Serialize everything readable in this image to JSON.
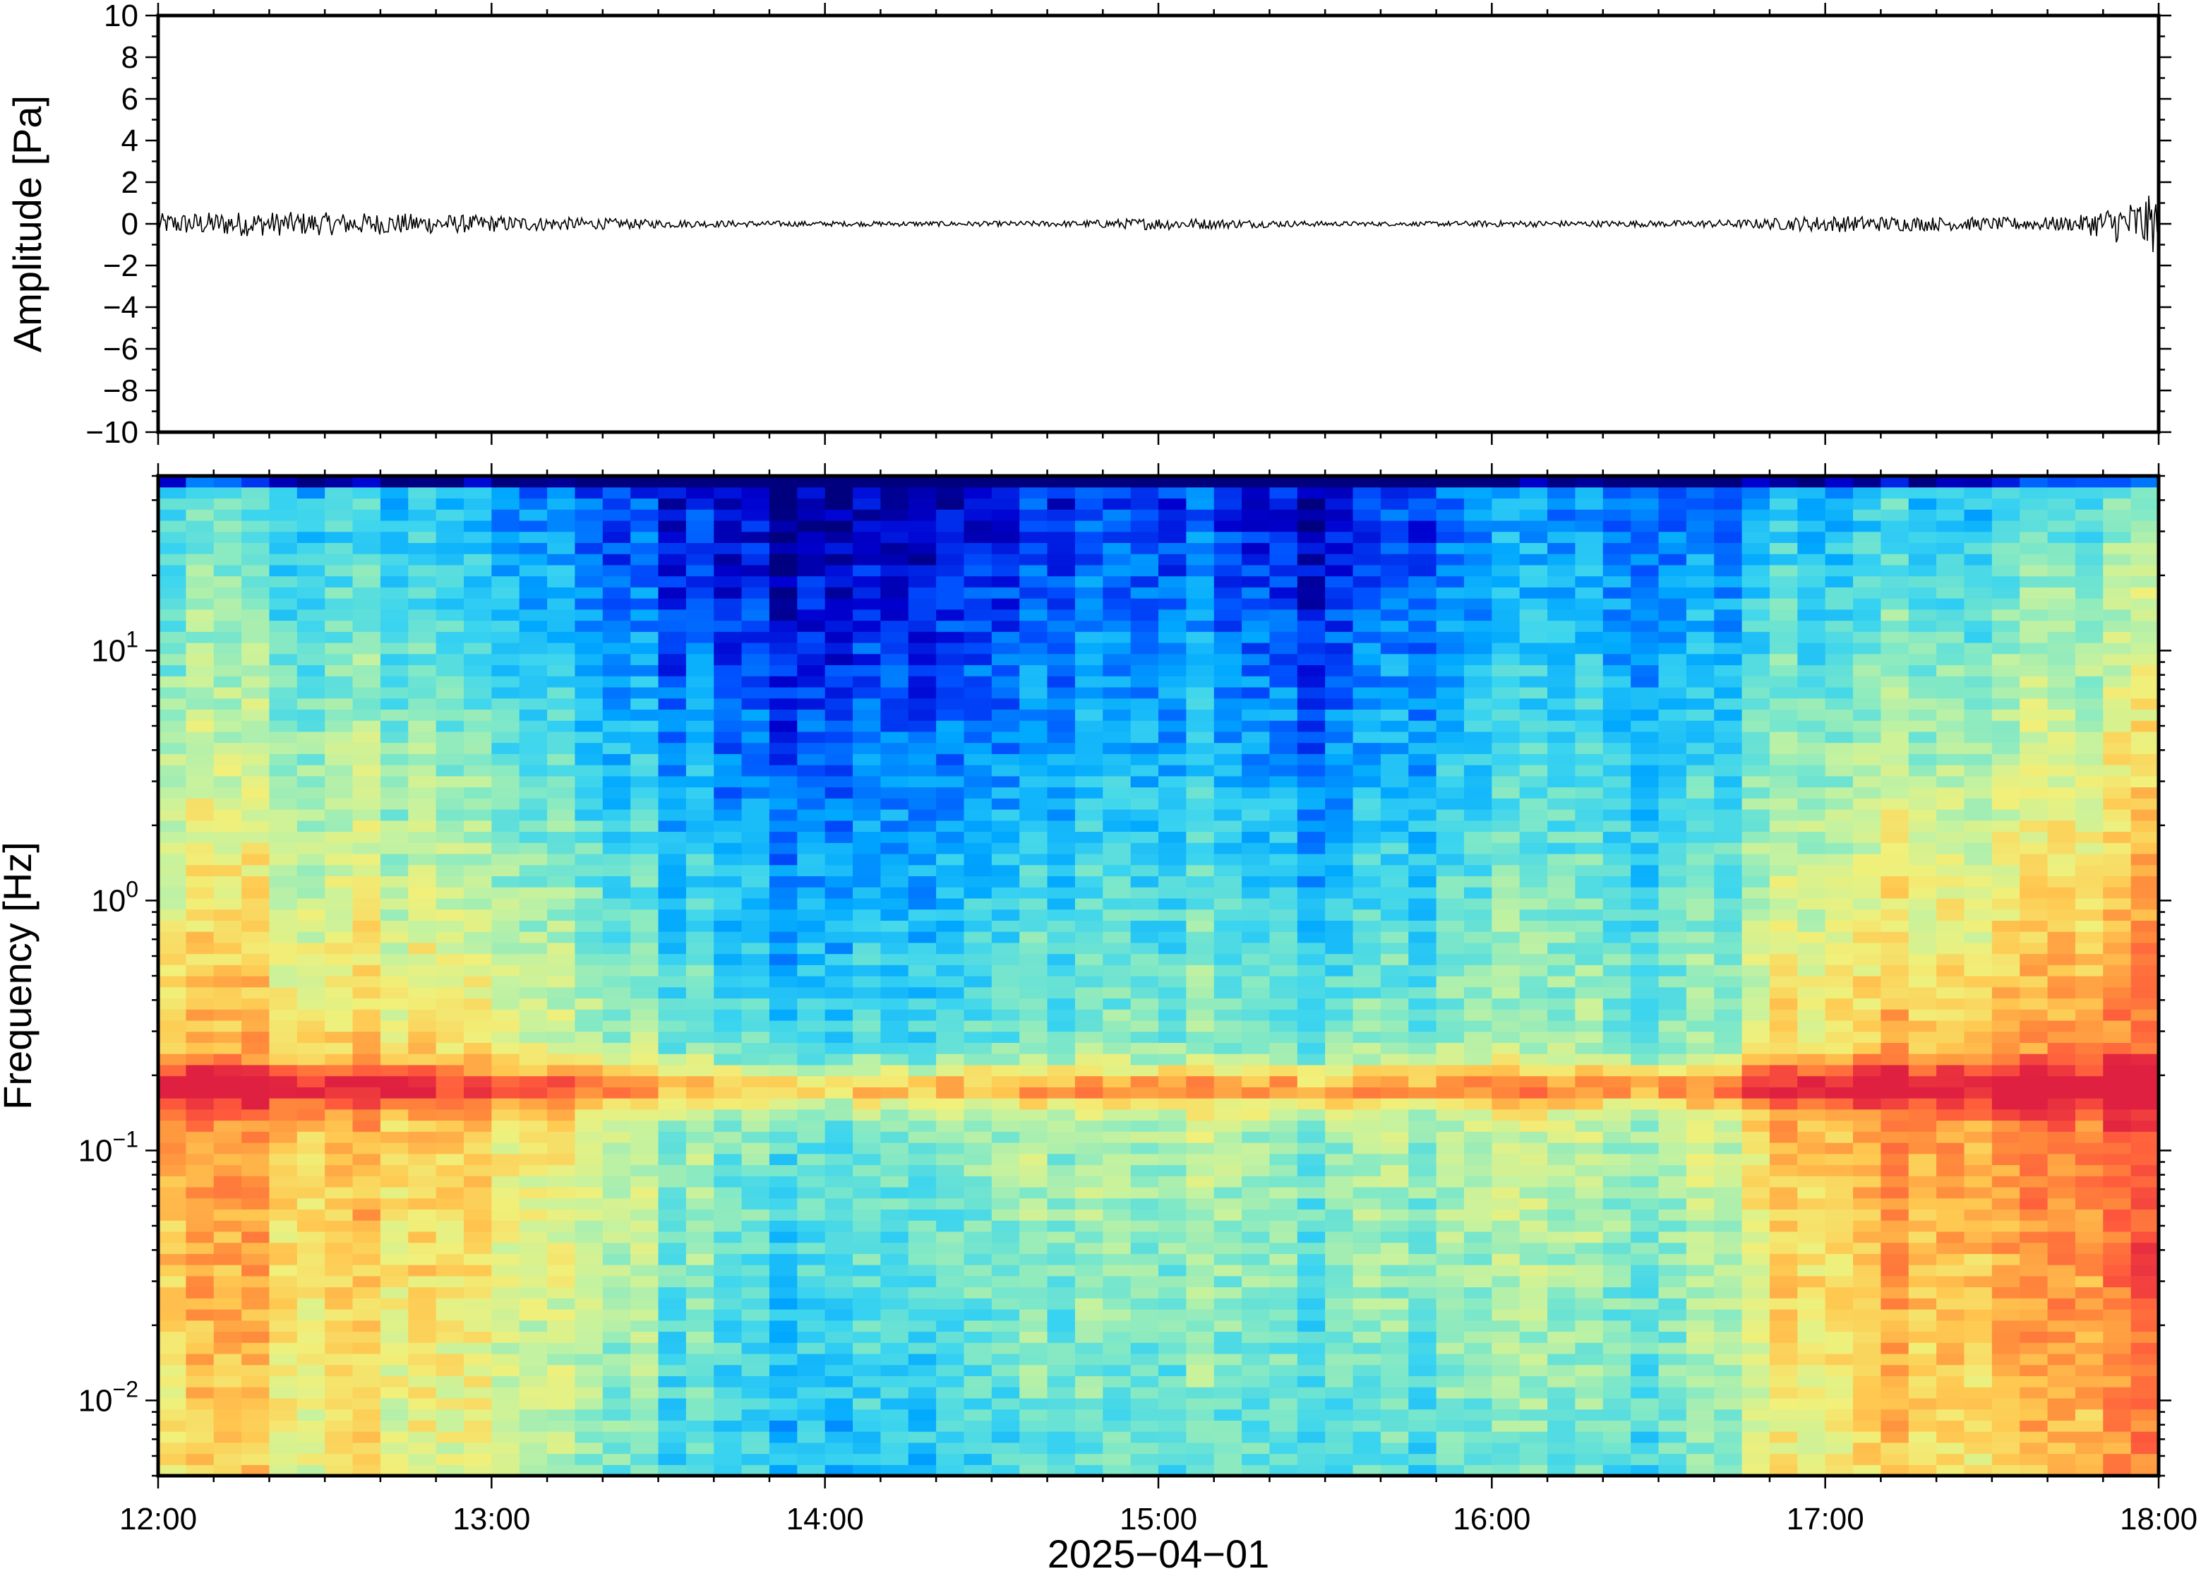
{
  "chart_data": [
    {
      "type": "line",
      "panel": "waveform",
      "ylabel": "Amplitude [Pa]",
      "ylim": [
        -10,
        10
      ],
      "yticks": [
        10,
        8,
        6,
        4,
        2,
        0,
        -2,
        -4,
        -6,
        -8,
        -10
      ],
      "ytick_labels": [
        "10",
        "8",
        "6",
        "4",
        "2",
        "0",
        "−2",
        "−4",
        "−6",
        "−8",
        "−10"
      ],
      "xlim": [
        "12:00",
        "18:00"
      ],
      "line_color": "#000000",
      "series": [
        {
          "x_hours": [
            12.0,
            12.25,
            12.5,
            12.75,
            13.0,
            13.25,
            13.5,
            13.75,
            14.0,
            14.25,
            14.5,
            14.75,
            15.0,
            15.25,
            15.5,
            15.75,
            16.0,
            16.25,
            16.5,
            16.75,
            17.0,
            17.25,
            17.5,
            17.75,
            18.0
          ],
          "envelope_pa": [
            0.5,
            0.6,
            0.55,
            0.5,
            0.4,
            0.3,
            0.2,
            0.15,
            0.12,
            0.12,
            0.12,
            0.15,
            0.3,
            0.2,
            0.12,
            0.1,
            0.15,
            0.15,
            0.15,
            0.2,
            0.4,
            0.35,
            0.3,
            0.35,
            1.5
          ]
        }
      ]
    },
    {
      "type": "heatmap",
      "panel": "spectrogram",
      "ylabel": "Frequency [Hz]",
      "yscale": "log",
      "ylim": [
        0.005,
        50
      ],
      "yticks": [
        10,
        1,
        0.1,
        0.01
      ],
      "ytick_labels": [
        {
          "base": "10",
          "exp": "1"
        },
        {
          "base": "10",
          "exp": "0"
        },
        {
          "base": "10",
          "exp": "−1"
        },
        {
          "base": "10",
          "exp": "−2"
        }
      ],
      "xlabel": "2025−04−01",
      "xticks": [
        "12:00",
        "13:00",
        "14:00",
        "15:00",
        "16:00",
        "17:00",
        "18:00"
      ],
      "colormap": [
        "#00007f",
        "#0000d0",
        "#0050ff",
        "#00a8ff",
        "#3ad4f0",
        "#7ee8c8",
        "#c4f2a0",
        "#f0f07a",
        "#ffc850",
        "#ff8c3c",
        "#ff5a3c",
        "#e02040"
      ],
      "time_profile": {
        "x_hours": [
          12.0,
          12.5,
          13.0,
          13.5,
          14.0,
          14.5,
          15.0,
          15.5,
          16.0,
          16.5,
          17.0,
          17.5,
          18.0
        ],
        "high_freq_level": [
          0.4,
          0.35,
          0.3,
          0.1,
          0.02,
          0.05,
          0.2,
          0.02,
          0.25,
          0.2,
          0.3,
          0.35,
          0.45
        ],
        "low_freq_level": [
          0.8,
          0.75,
          0.7,
          0.5,
          0.4,
          0.45,
          0.55,
          0.45,
          0.55,
          0.5,
          0.75,
          0.8,
          0.9
        ]
      },
      "microseism_peak_hz": 0.18
    }
  ]
}
